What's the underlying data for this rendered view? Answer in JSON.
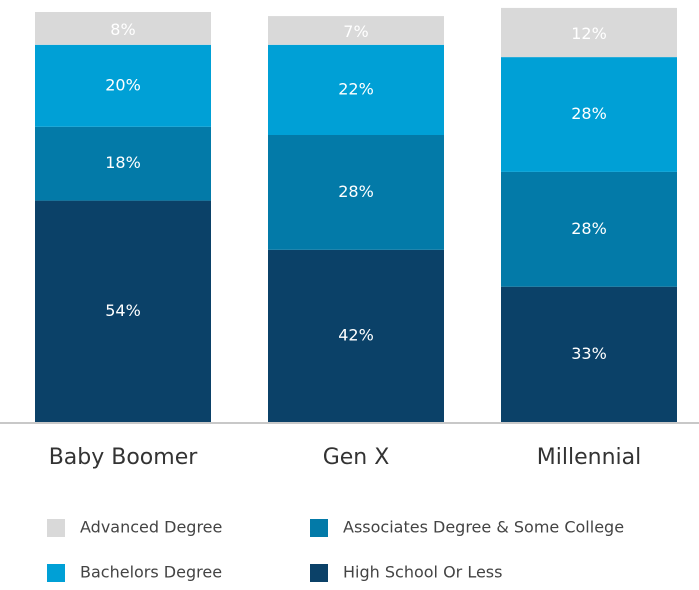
{
  "chart_data": {
    "type": "stacked_bar",
    "categories": [
      "Baby Boomer",
      "Gen X",
      "Millennial"
    ],
    "series": [
      {
        "name": "High School Or Less",
        "color": "#0b4168",
        "values": [
          54,
          42,
          33
        ],
        "value_labels": [
          "54%",
          "42%",
          "33%"
        ]
      },
      {
        "name": "Associates Degree & Some College",
        "color": "#037aa8",
        "values": [
          18,
          28,
          28
        ],
        "value_labels": [
          "18%",
          "28%",
          "28%"
        ]
      },
      {
        "name": "Bachelors Degree",
        "color": "#00a0d6",
        "values": [
          20,
          22,
          28
        ],
        "value_labels": [
          "20%",
          "22%",
          "28%"
        ]
      },
      {
        "name": "Advanced Degree",
        "color": "#d9d9d9",
        "values": [
          8,
          7,
          12
        ],
        "value_labels": [
          "8%",
          "7%",
          "12%"
        ]
      }
    ],
    "ylim": [
      0,
      100
    ]
  }
}
